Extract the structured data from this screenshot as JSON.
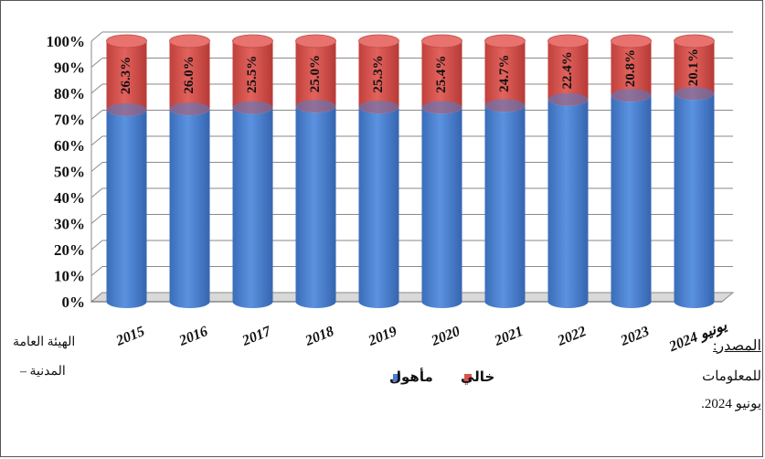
{
  "chart_data": {
    "type": "bar",
    "stacked": true,
    "percent_stacked": true,
    "title": "",
    "categories": [
      "2015",
      "2016",
      "2017",
      "2018",
      "2019",
      "2020",
      "2021",
      "2022",
      "2023",
      "يونيو 2024"
    ],
    "series": [
      {
        "name": "مأهول",
        "color": "#4a7fd0",
        "values": [
          73.7,
          74.0,
          74.5,
          75.0,
          74.7,
          74.6,
          75.3,
          77.6,
          79.2,
          79.9
        ]
      },
      {
        "name": "خالي",
        "color": "#d9534f",
        "values": [
          26.3,
          26.0,
          25.5,
          25.0,
          25.3,
          25.4,
          24.7,
          22.4,
          20.8,
          20.1
        ]
      }
    ],
    "data_labels": [
      "26.3%",
      "26.0%",
      "25.5%",
      "25.0%",
      "25.3%",
      "25.4%",
      "24.7%",
      "22.4%",
      "20.8%",
      "20.1%"
    ],
    "y_ticks": [
      "0%",
      "10%",
      "20%",
      "30%",
      "40%",
      "50%",
      "60%",
      "70%",
      "80%",
      "90%",
      "100%"
    ],
    "ylim": [
      0,
      100
    ],
    "grid": true,
    "legend_position": "bottom"
  },
  "source": {
    "label": "المصدر:",
    "lines": [
      "للمعلومات",
      "يونيو 2024."
    ]
  },
  "note_left": [
    "الهيئة العامة",
    "المدنية –"
  ]
}
